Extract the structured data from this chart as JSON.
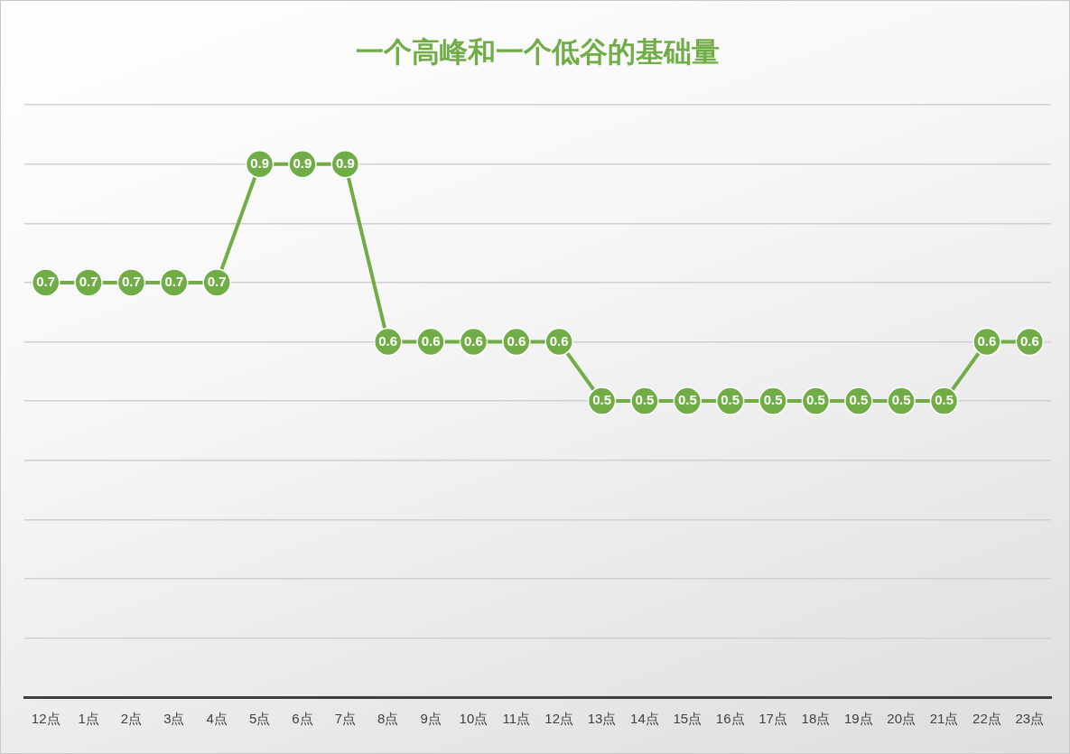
{
  "chart_data": {
    "type": "line",
    "title": "一个高峰和一个低谷的基础量",
    "categories": [
      "12点",
      "1点",
      "2点",
      "3点",
      "4点",
      "5点",
      "6点",
      "7点",
      "8点",
      "9点",
      "10点",
      "11点",
      "12点",
      "13点",
      "14点",
      "15点",
      "16点",
      "17点",
      "18点",
      "19点",
      "20点",
      "21点",
      "22点",
      "23点"
    ],
    "series": [
      {
        "color": "#70ad47",
        "values": [
          0.7,
          0.7,
          0.7,
          0.7,
          0.7,
          0.9,
          0.9,
          0.9,
          0.6,
          0.6,
          0.6,
          0.6,
          0.6,
          0.5,
          0.5,
          0.5,
          0.5,
          0.5,
          0.5,
          0.5,
          0.5,
          0.5,
          0.6,
          0.6
        ]
      }
    ],
    "ylim": [
      0,
      1
    ],
    "yticks": [
      {
        "value": 0,
        "label": null
      },
      {
        "value": 0.1,
        "label": null
      },
      {
        "value": 0.2,
        "label": null
      },
      {
        "value": 0.3,
        "label": null
      },
      {
        "value": 0.4,
        "label": null
      },
      {
        "value": 0.5,
        "label": null
      },
      {
        "value": 0.6,
        "label": null
      },
      {
        "value": 0.7,
        "label": null
      },
      {
        "value": 0.8,
        "label": null
      },
      {
        "value": 0.9,
        "label": null
      },
      {
        "value": 1,
        "label": null
      }
    ],
    "grid": "y",
    "tick_labels": "x",
    "marker": "circle",
    "data_labels": true
  }
}
